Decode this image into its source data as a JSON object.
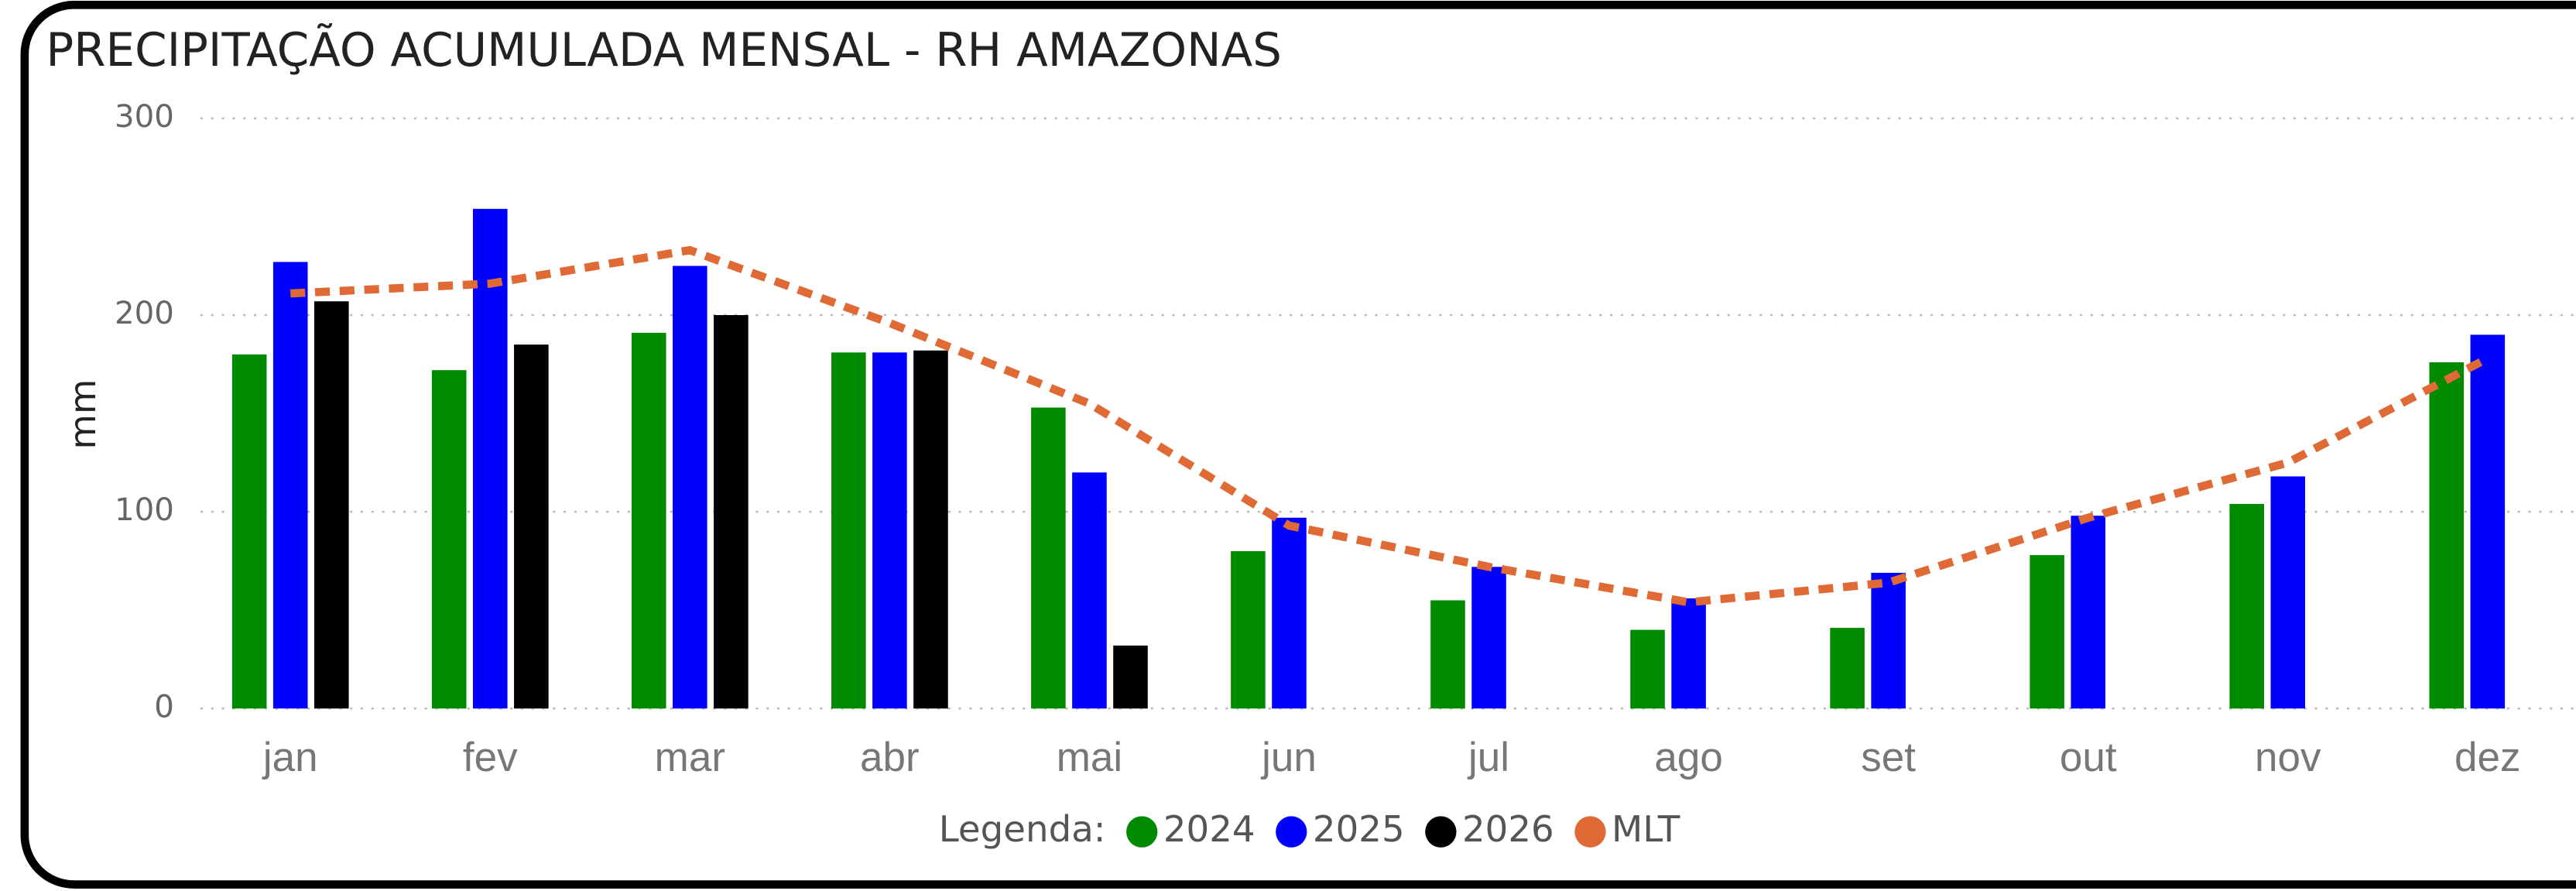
{
  "chart_data": {
    "type": "bar",
    "title": "PRECIPITAÇÃO ACUMULADA MENSAL - RH AMAZONAS",
    "y_label": "mm",
    "legend_title": "Legenda:",
    "categories": [
      "jan",
      "fev",
      "mar",
      "abr",
      "mai",
      "jun",
      "jul",
      "ago",
      "set",
      "out",
      "nov",
      "dez"
    ],
    "series": [
      {
        "name": "2024",
        "color": "#008a00",
        "values": [
          180,
          172,
          191,
          181,
          153,
          80,
          55,
          40,
          41,
          78,
          104,
          176
        ]
      },
      {
        "name": "2025",
        "color": "#0000ff",
        "values": [
          227,
          254,
          225,
          181,
          120,
          97,
          72,
          56,
          69,
          98,
          118,
          190
        ]
      },
      {
        "name": "2026",
        "color": "#000000",
        "values": [
          207,
          185,
          200,
          182,
          32,
          null,
          null,
          null,
          null,
          null,
          null,
          null
        ]
      },
      {
        "name": "MLT",
        "color": "#e06a35",
        "type": "line",
        "values": [
          211,
          216,
          233,
          196,
          155,
          93,
          72,
          54,
          64,
          97,
          125,
          178
        ]
      }
    ],
    "ylim": [
      0,
      300
    ],
    "yticks": [
      0,
      100,
      200,
      300
    ],
    "grid": true
  }
}
